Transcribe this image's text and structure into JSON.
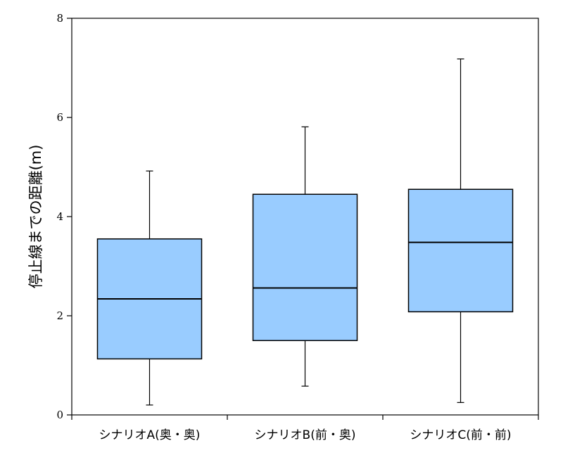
{
  "chart_data": {
    "type": "boxplot",
    "categories": [
      "シナリオA(奥・奥)",
      "シナリオB(前・奥)",
      "シナリオC(前・前)"
    ],
    "boxes": [
      {
        "min": 0.2,
        "q1": 1.13,
        "median": 2.34,
        "q3": 3.55,
        "max": 4.92
      },
      {
        "min": 0.58,
        "q1": 1.5,
        "median": 2.56,
        "q3": 4.45,
        "max": 5.81
      },
      {
        "min": 0.25,
        "q1": 2.08,
        "median": 3.48,
        "q3": 4.55,
        "max": 7.18
      }
    ],
    "ylabel": "停止線までの距離(m)",
    "xlabel": "",
    "ylim": [
      0,
      8
    ],
    "yticks": [
      0,
      2,
      4,
      6,
      8
    ],
    "grid": false,
    "box_color": "#99ccff",
    "line_color": "#000000"
  }
}
